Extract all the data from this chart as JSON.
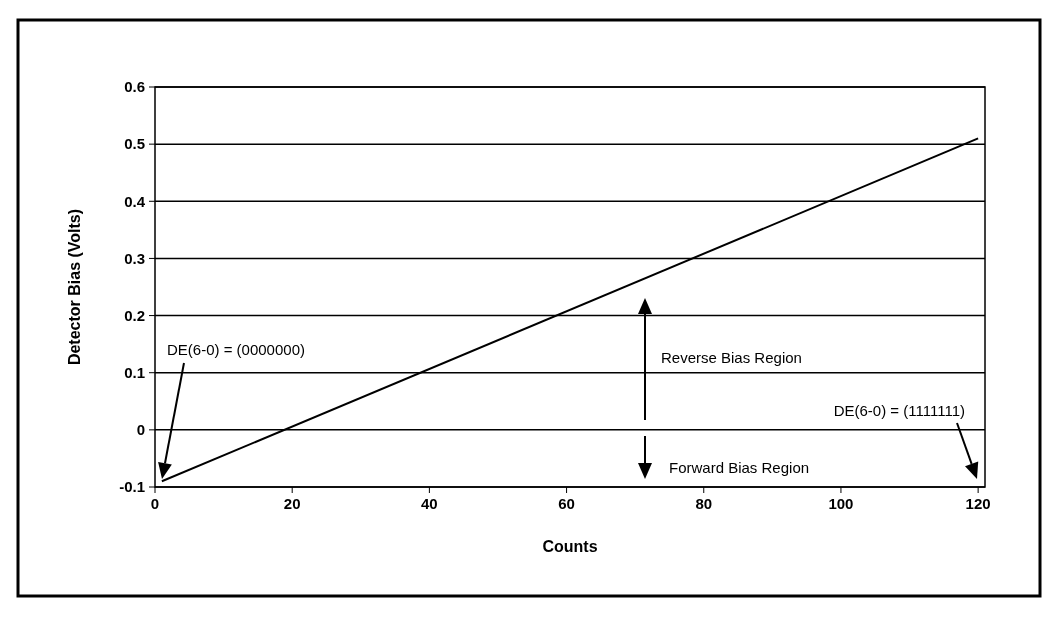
{
  "chart_data": {
    "type": "line",
    "xlabel": "Counts",
    "ylabel": "Detector Bias (Volts)",
    "x": [
      1,
      120
    ],
    "series": [
      {
        "color": "#000000",
        "values": [
          -0.09,
          0.51
        ]
      }
    ],
    "xlim": [
      0,
      121
    ],
    "xticks": [
      0,
      20,
      40,
      60,
      80,
      100,
      120
    ],
    "ylim": [
      -0.1,
      0.6
    ],
    "yticks": [
      -0.1,
      0,
      0.1,
      0.2,
      0.3,
      0.4,
      0.5,
      0.6
    ],
    "grid": "y",
    "marker": "none",
    "line_style": "solid",
    "annotations": [
      "DE(6-0) = (0000000)",
      "DE(6-0) = (1111111)",
      "Reverse Bias Region",
      "Forward Bias Region"
    ]
  }
}
